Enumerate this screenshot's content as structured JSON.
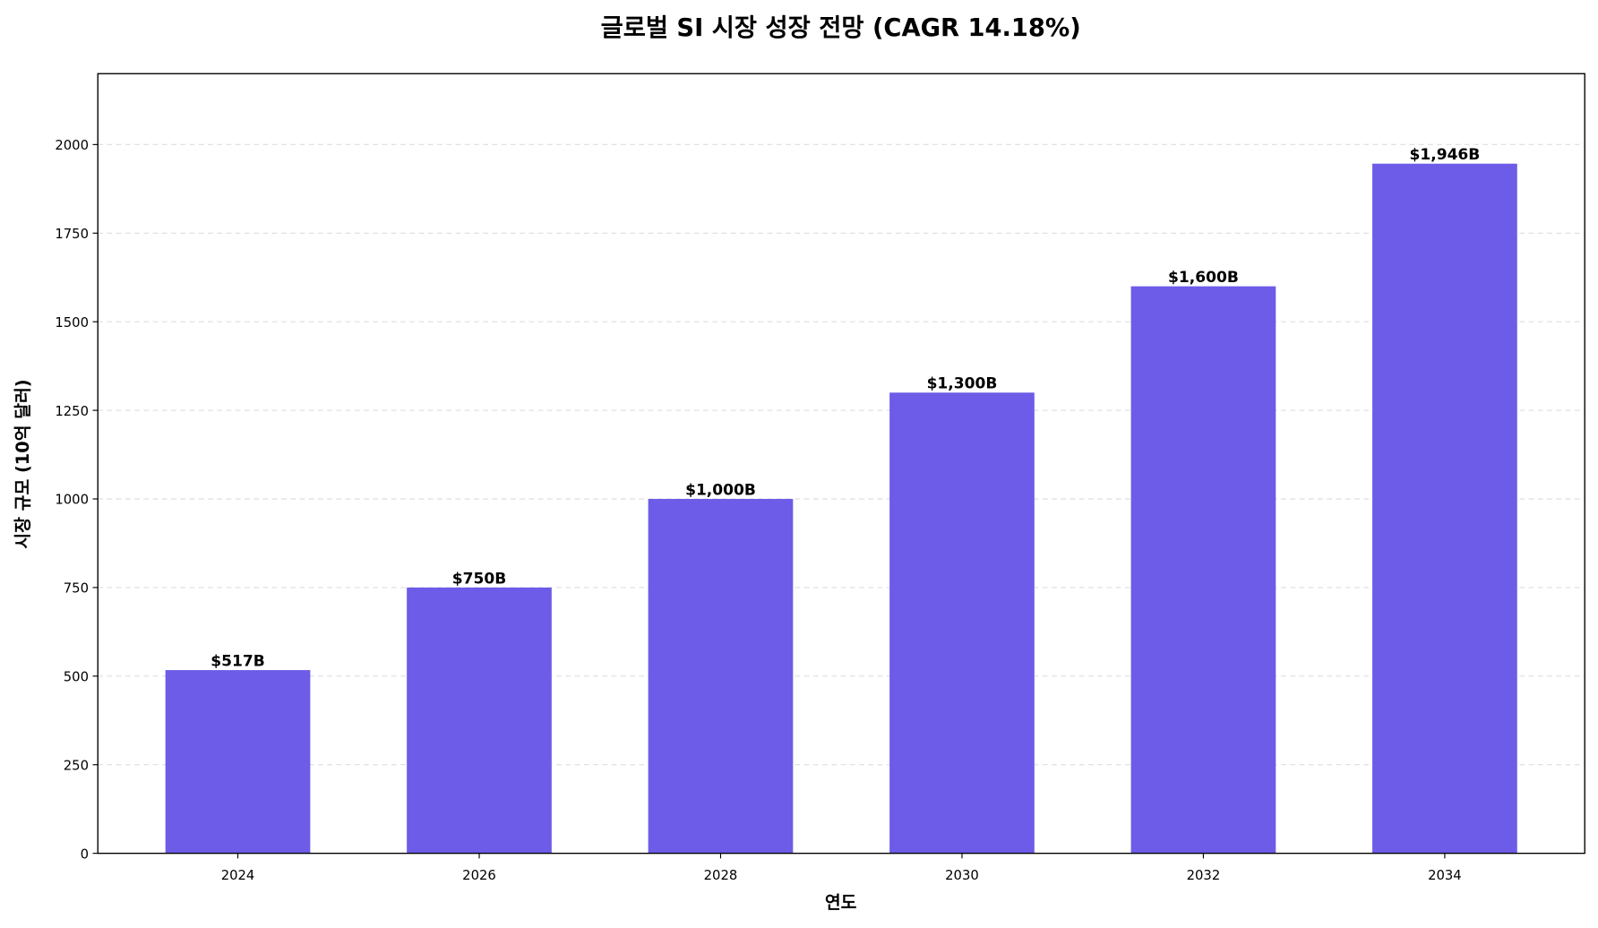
{
  "chart_data": {
    "type": "bar",
    "title": "글로벌 SI 시장 성장 전망 (CAGR 14.18%)",
    "xlabel": "연도",
    "ylabel": "시장 규모 (10억 달러)",
    "categories": [
      "2024",
      "2026",
      "2028",
      "2030",
      "2032",
      "2034"
    ],
    "values": [
      517,
      750,
      1000,
      1300,
      1600,
      1946
    ],
    "data_labels": [
      "$517B",
      "$750B",
      "$1,000B",
      "$1,300B",
      "$1,600B",
      "$1,946B"
    ],
    "ylim": [
      0,
      2200
    ],
    "yticks": [
      0,
      250,
      500,
      750,
      1000,
      1250,
      1500,
      1750,
      2000
    ],
    "grid": "y-dashed",
    "bar_color": "#6c5ce7"
  }
}
